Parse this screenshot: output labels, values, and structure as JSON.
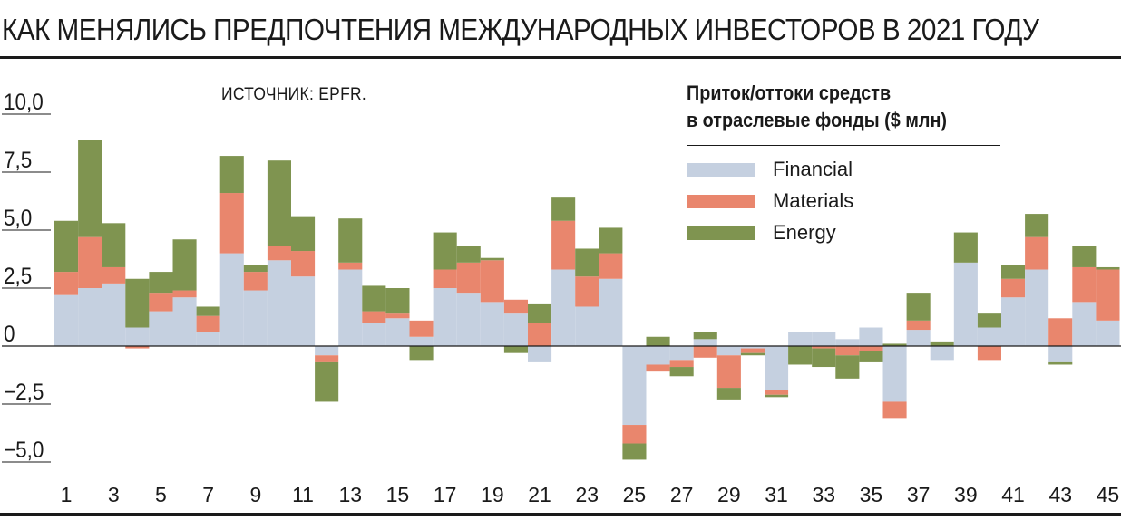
{
  "title": "КАК МЕНЯЛИСЬ ПРЕДПОЧТЕНИЯ МЕЖДУНАРОДНЫХ ИНВЕСТОРОВ В 2021 ГОДУ",
  "source": "ИСТОЧНИК: EPFR.",
  "legend": {
    "title_line1": "Приток/оттоки средств",
    "title_line2": "в отраслевые фонды ($ млн)"
  },
  "colors": {
    "Financial": "#c5d0e0",
    "Materials": "#e9866d",
    "Energy": "#7f9450",
    "axis": "#1a1a1a"
  },
  "chart_data": {
    "type": "bar",
    "stacked": true,
    "title": "КАК МЕНЯЛИСЬ ПРЕДПОЧТЕНИЯ МЕЖДУНАРОДНЫХ ИНВЕСТОРОВ В 2021 ГОДУ",
    "xlabel": "",
    "ylabel": "",
    "ylim": [
      -5.0,
      10.0
    ],
    "yticks": [
      10.0,
      7.5,
      5.0,
      2.5,
      0,
      -2.5,
      -5.0
    ],
    "ytick_labels": [
      "10,0",
      "7,5",
      "5,0",
      "2,5",
      "0",
      "−2,5",
      "−5,0"
    ],
    "grid": false,
    "legend_position": "top-right",
    "categories": [
      1,
      2,
      3,
      4,
      5,
      6,
      7,
      8,
      9,
      10,
      11,
      12,
      13,
      14,
      15,
      16,
      17,
      18,
      19,
      20,
      21,
      22,
      23,
      24,
      25,
      26,
      27,
      28,
      29,
      30,
      31,
      32,
      33,
      34,
      35,
      36,
      37,
      38,
      39,
      40,
      41,
      42,
      43,
      44,
      45
    ],
    "xtick_labels": [
      "1",
      "3",
      "5",
      "7",
      "9",
      "11",
      "13",
      "15",
      "17",
      "19",
      "21",
      "23",
      "25",
      "27",
      "29",
      "31",
      "33",
      "35",
      "37",
      "39",
      "41",
      "43",
      "45"
    ],
    "series": [
      {
        "name": "Financial",
        "values": [
          2.2,
          2.5,
          2.7,
          0.8,
          1.5,
          2.1,
          0.6,
          4.0,
          2.4,
          3.7,
          3.0,
          -0.4,
          3.3,
          1.0,
          1.2,
          0.4,
          2.5,
          2.3,
          1.9,
          1.4,
          -0.7,
          3.3,
          1.7,
          2.9,
          -3.4,
          -0.8,
          -0.6,
          0.3,
          -0.4,
          -0.1,
          -1.9,
          0.6,
          0.6,
          0.3,
          0.8,
          -2.4,
          0.7,
          -0.6,
          3.6,
          0.8,
          2.1,
          3.3,
          -0.7,
          1.9,
          1.1
        ]
      },
      {
        "name": "Materials",
        "values": [
          1.0,
          2.2,
          0.7,
          -0.1,
          0.8,
          0.3,
          0.7,
          2.6,
          0.8,
          0.6,
          1.1,
          -0.3,
          0.3,
          0.5,
          0.2,
          0.7,
          0.8,
          1.3,
          1.8,
          0.6,
          1.0,
          2.1,
          1.3,
          1.1,
          -0.8,
          -0.3,
          -0.3,
          -0.5,
          -1.4,
          -0.2,
          -0.2,
          0.0,
          -0.1,
          -0.4,
          -0.2,
          -0.7,
          0.4,
          0.0,
          0.0,
          -0.6,
          0.8,
          1.4,
          1.2,
          1.5,
          2.2
        ]
      },
      {
        "name": "Energy",
        "values": [
          2.2,
          4.2,
          1.9,
          2.1,
          0.9,
          2.2,
          0.4,
          1.6,
          0.3,
          3.7,
          1.5,
          -1.7,
          1.9,
          1.1,
          1.1,
          -0.6,
          1.6,
          0.7,
          0.1,
          -0.3,
          0.8,
          1.0,
          1.2,
          1.1,
          -0.7,
          0.4,
          -0.4,
          0.3,
          -0.5,
          -0.1,
          -0.1,
          -0.8,
          -0.8,
          -1.0,
          -0.5,
          0.1,
          1.2,
          0.2,
          1.3,
          0.6,
          0.6,
          1.0,
          -0.1,
          0.9,
          0.1
        ]
      }
    ]
  }
}
